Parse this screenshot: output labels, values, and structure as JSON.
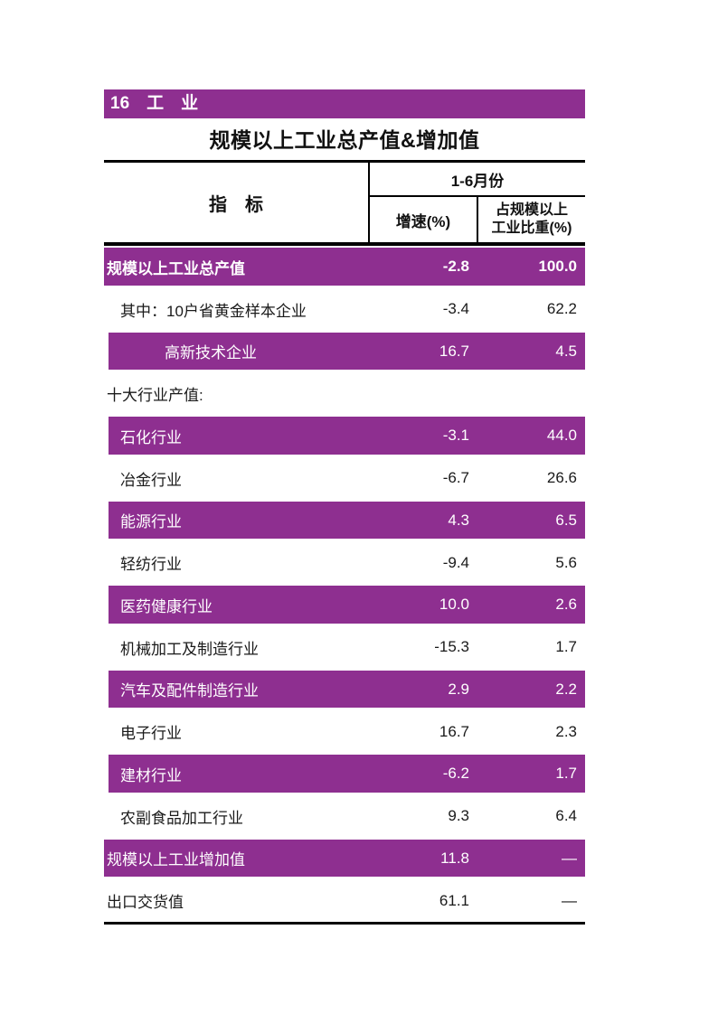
{
  "banner": {
    "label": "16　工　业"
  },
  "title": "规模以上工业总产值&增加值",
  "table": {
    "header": {
      "indicator": "指　标",
      "period": "1-6月份",
      "growth_col": "增速(%)",
      "share_col_line1": "占规模以上",
      "share_col_line2": "工业比重(%)"
    },
    "rows": [
      {
        "label": "规模以上工业总产值",
        "growth": "-2.8",
        "share": "100.0",
        "style": "purple",
        "bold": true,
        "indent": 0,
        "bar_indent": 0
      },
      {
        "label": "其中：10户省黄金样本企业",
        "growth": "-3.4",
        "share": "62.2",
        "style": "white",
        "bold": false,
        "indent": 1,
        "bar_indent": 0
      },
      {
        "label": "高新技术企业",
        "growth": "16.7",
        "share": "4.5",
        "style": "purple",
        "bold": false,
        "indent": 2,
        "bar_indent": 1
      },
      {
        "label": "十大行业产值:",
        "growth": "",
        "share": "",
        "style": "white",
        "bold": false,
        "indent": 0,
        "bar_indent": 0
      },
      {
        "label": "石化行业",
        "growth": "-3.1",
        "share": "44.0",
        "style": "purple",
        "bold": false,
        "indent": 1,
        "bar_indent": 1
      },
      {
        "label": "冶金行业",
        "growth": "-6.7",
        "share": "26.6",
        "style": "white",
        "bold": false,
        "indent": 1,
        "bar_indent": 0
      },
      {
        "label": "能源行业",
        "growth": "4.3",
        "share": "6.5",
        "style": "purple",
        "bold": false,
        "indent": 1,
        "bar_indent": 1
      },
      {
        "label": "轻纺行业",
        "growth": "-9.4",
        "share": "5.6",
        "style": "white",
        "bold": false,
        "indent": 1,
        "bar_indent": 0
      },
      {
        "label": "医药健康行业",
        "growth": "10.0",
        "share": "2.6",
        "style": "purple",
        "bold": false,
        "indent": 1,
        "bar_indent": 1
      },
      {
        "label": "机械加工及制造行业",
        "growth": "-15.3",
        "share": "1.7",
        "style": "white",
        "bold": false,
        "indent": 1,
        "bar_indent": 0
      },
      {
        "label": "汽车及配件制造行业",
        "growth": "2.9",
        "share": "2.2",
        "style": "purple",
        "bold": false,
        "indent": 1,
        "bar_indent": 1
      },
      {
        "label": "电子行业",
        "growth": "16.7",
        "share": "2.3",
        "style": "white",
        "bold": false,
        "indent": 1,
        "bar_indent": 0
      },
      {
        "label": "建材行业",
        "growth": "-6.2",
        "share": "1.7",
        "style": "purple",
        "bold": false,
        "indent": 1,
        "bar_indent": 1
      },
      {
        "label": "农副食品加工行业",
        "growth": "9.3",
        "share": "6.4",
        "style": "white",
        "bold": false,
        "indent": 1,
        "bar_indent": 0
      },
      {
        "label": "规模以上工业增加值",
        "growth": "11.8",
        "share": "—",
        "style": "purple",
        "bold": false,
        "indent": 0,
        "bar_indent": 0
      },
      {
        "label": "出口交货值",
        "growth": "61.1",
        "share": "—",
        "style": "white",
        "bold": false,
        "indent": 0,
        "bar_indent": 0
      }
    ]
  },
  "colors": {
    "purple": "#8E2F90"
  }
}
